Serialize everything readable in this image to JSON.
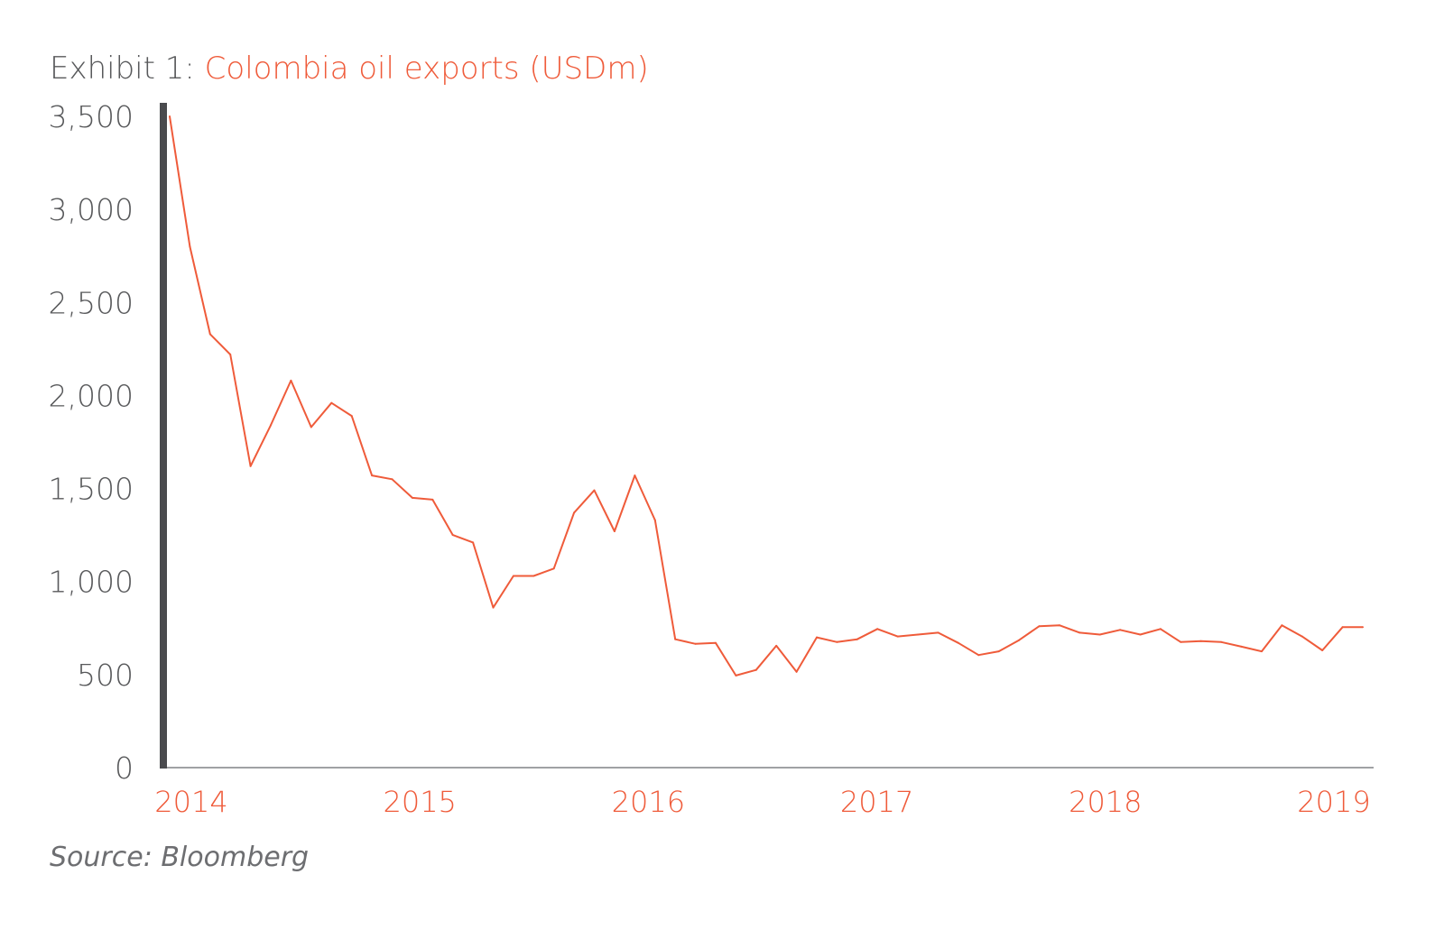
{
  "chart_data": {
    "type": "line",
    "title_prefix": "Exhibit 1: ",
    "title": "Colombia oil exports (USDm)",
    "source": "Source: Bloomberg",
    "xlabel": "",
    "ylabel": "",
    "ylim": [
      0,
      3500
    ],
    "y_ticks": [
      {
        "value": 0,
        "label": "0"
      },
      {
        "value": 500,
        "label": "500"
      },
      {
        "value": 1000,
        "label": "1,000"
      },
      {
        "value": 1500,
        "label": "1,500"
      },
      {
        "value": 2000,
        "label": "2,000"
      },
      {
        "value": 2500,
        "label": "2,500"
      },
      {
        "value": 3000,
        "label": "3,000"
      },
      {
        "value": 3500,
        "label": "3,500"
      }
    ],
    "x_ticks": [
      "2014",
      "2015",
      "2016",
      "2017",
      "2018",
      "2019"
    ],
    "grid": false,
    "legend": "none",
    "colors": {
      "line": "#ef5b3a",
      "y_axis": "#4a4b4e",
      "x_axis": "#808285"
    },
    "series": [
      {
        "values": [
          3500,
          2800,
          2330,
          2220,
          1620,
          1840,
          2080,
          1830,
          1960,
          1890,
          1570,
          1550,
          1450,
          1440,
          1250,
          1210,
          860,
          1030,
          1030,
          1070,
          1370,
          1490,
          1270,
          1570,
          1330,
          690,
          665,
          670,
          495,
          525,
          655,
          515,
          700,
          675,
          690,
          745,
          705,
          715,
          725,
          670,
          605,
          625,
          685,
          760,
          765,
          725,
          715,
          740,
          715,
          745,
          675,
          680,
          675,
          650,
          625,
          765,
          705,
          630,
          755,
          755
        ]
      }
    ]
  }
}
